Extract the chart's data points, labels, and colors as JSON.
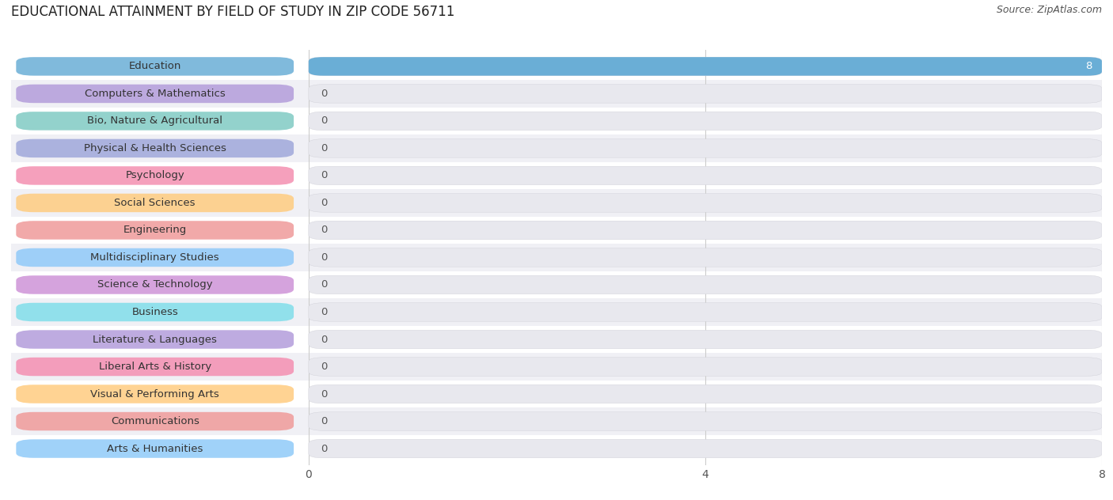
{
  "title": "EDUCATIONAL ATTAINMENT BY FIELD OF STUDY IN ZIP CODE 56711",
  "source": "Source: ZipAtlas.com",
  "categories": [
    "Education",
    "Computers & Mathematics",
    "Bio, Nature & Agricultural",
    "Physical & Health Sciences",
    "Psychology",
    "Social Sciences",
    "Engineering",
    "Multidisciplinary Studies",
    "Science & Technology",
    "Business",
    "Literature & Languages",
    "Liberal Arts & History",
    "Visual & Performing Arts",
    "Communications",
    "Arts & Humanities"
  ],
  "values": [
    8,
    0,
    0,
    0,
    0,
    0,
    0,
    0,
    0,
    0,
    0,
    0,
    0,
    0,
    0
  ],
  "bar_colors": [
    "#6aaed6",
    "#b39ddb",
    "#80cbc4",
    "#9fa8da",
    "#f48fb1",
    "#ffcc80",
    "#ef9a9a",
    "#90caf9",
    "#ce93d8",
    "#80deea",
    "#b39ddb",
    "#f48fb1",
    "#ffcc80",
    "#ef9a9a",
    "#90caf9"
  ],
  "background_color": "#ffffff",
  "row_alt_color": "#f0f0f5",
  "bar_bg_color": "#e8e8ee",
  "xlim": [
    0,
    8
  ],
  "xticks": [
    0,
    4,
    8
  ],
  "title_fontsize": 12,
  "label_fontsize": 9.5,
  "tick_fontsize": 10,
  "value_label_color_on_bar": "#ffffff",
  "zero_label_color": "#555555",
  "grid_color": "#cccccc"
}
